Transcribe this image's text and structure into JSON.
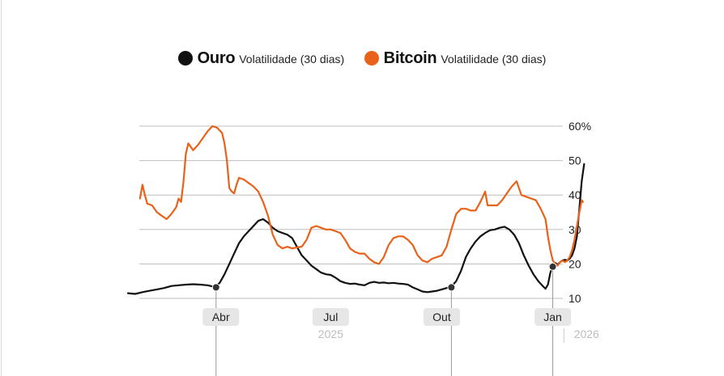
{
  "legend": {
    "gold_name": "Ouro",
    "gold_sub": "Volatilidade (30 dias)",
    "btc_name": "Bitcoin",
    "btc_sub": "Volatilidade (30 dias)"
  },
  "colors": {
    "gold": "#111111",
    "btc": "#e8621a",
    "grid": "#bdbdbd",
    "label_bg": "#e6e6e6"
  },
  "chart_data": {
    "type": "line",
    "title": "",
    "xlabel": "",
    "ylabel": "",
    "x_unit": "days since 2025-03-01",
    "xlim": [
      -46,
      313
    ],
    "ylim": [
      10,
      60
    ],
    "y_ticks": [
      10,
      20,
      30,
      40,
      50,
      60
    ],
    "y_tick_labels": [
      "10",
      "20",
      "30",
      "40",
      "50",
      "60%"
    ],
    "x_ticks": [
      {
        "x": 31,
        "label": "Abr"
      },
      {
        "x": 122,
        "label": "Jul"
      },
      {
        "x": 214,
        "label": "Out"
      },
      {
        "x": 306,
        "label": "Jan"
      }
    ],
    "year_labels": [
      {
        "x": 122,
        "label": "2025"
      },
      {
        "x": 334,
        "label": "2026"
      }
    ],
    "markers": [
      {
        "series": "Ouro",
        "x": 27,
        "y": 13.2
      },
      {
        "series": "Ouro",
        "x": 222,
        "y": 13.2
      },
      {
        "series": "Ouro",
        "x": 306,
        "y": 19.2
      }
    ],
    "series": [
      {
        "name": "Ouro",
        "points": [
          [
            -46,
            11.5
          ],
          [
            -40,
            11.3
          ],
          [
            -34,
            11.8
          ],
          [
            -28,
            12.2
          ],
          [
            -22,
            12.6
          ],
          [
            -16,
            13.0
          ],
          [
            -10,
            13.6
          ],
          [
            -4,
            13.8
          ],
          [
            2,
            14.0
          ],
          [
            8,
            14.1
          ],
          [
            14,
            14.0
          ],
          [
            20,
            13.8
          ],
          [
            26,
            13.3
          ],
          [
            30,
            14.5
          ],
          [
            34,
            17.0
          ],
          [
            38,
            20.0
          ],
          [
            42,
            23.0
          ],
          [
            46,
            26.0
          ],
          [
            50,
            28.0
          ],
          [
            54,
            29.5
          ],
          [
            58,
            31.0
          ],
          [
            62,
            32.5
          ],
          [
            66,
            33.0
          ],
          [
            70,
            32.0
          ],
          [
            74,
            30.5
          ],
          [
            78,
            29.5
          ],
          [
            82,
            29.0
          ],
          [
            86,
            28.5
          ],
          [
            90,
            27.5
          ],
          [
            94,
            25.0
          ],
          [
            98,
            22.5
          ],
          [
            102,
            21.0
          ],
          [
            106,
            19.5
          ],
          [
            110,
            18.5
          ],
          [
            114,
            17.5
          ],
          [
            118,
            17.0
          ],
          [
            122,
            16.8
          ],
          [
            126,
            16.0
          ],
          [
            130,
            15.0
          ],
          [
            134,
            14.5
          ],
          [
            138,
            14.2
          ],
          [
            142,
            14.3
          ],
          [
            146,
            14.0
          ],
          [
            150,
            13.8
          ],
          [
            154,
            14.5
          ],
          [
            158,
            14.8
          ],
          [
            162,
            14.5
          ],
          [
            166,
            14.6
          ],
          [
            170,
            14.4
          ],
          [
            174,
            14.5
          ],
          [
            178,
            14.3
          ],
          [
            182,
            14.2
          ],
          [
            186,
            14.0
          ],
          [
            190,
            13.2
          ],
          [
            194,
            12.6
          ],
          [
            198,
            12.0
          ],
          [
            202,
            11.8
          ],
          [
            206,
            12.0
          ],
          [
            210,
            12.2
          ],
          [
            214,
            12.6
          ],
          [
            218,
            13.0
          ],
          [
            222,
            13.4
          ],
          [
            226,
            15.0
          ],
          [
            230,
            18.0
          ],
          [
            234,
            22.0
          ],
          [
            238,
            24.5
          ],
          [
            242,
            26.5
          ],
          [
            246,
            28.0
          ],
          [
            250,
            29.0
          ],
          [
            254,
            29.8
          ],
          [
            258,
            30.0
          ],
          [
            262,
            30.5
          ],
          [
            266,
            30.8
          ],
          [
            270,
            30.0
          ],
          [
            274,
            28.5
          ],
          [
            278,
            26.0
          ],
          [
            282,
            22.5
          ],
          [
            286,
            19.5
          ],
          [
            290,
            17.0
          ],
          [
            294,
            15.0
          ],
          [
            298,
            13.5
          ],
          [
            300,
            12.8
          ],
          [
            302,
            14.0
          ],
          [
            304,
            17.5
          ],
          [
            306,
            19.5
          ],
          [
            308,
            20.3
          ],
          [
            310,
            19.8
          ],
          [
            312,
            20.5
          ],
          [
            314,
            21.0
          ],
          [
            316,
            21.2
          ],
          [
            318,
            21.0
          ],
          [
            320,
            21.5
          ],
          [
            322,
            22.5
          ],
          [
            324,
            24.5
          ],
          [
            326,
            28.0
          ],
          [
            328,
            36.0
          ],
          [
            330,
            44.0
          ],
          [
            332,
            49.0
          ]
        ]
      },
      {
        "name": "Bitcoin",
        "points": [
          [
            -36,
            39.0
          ],
          [
            -34,
            43.0
          ],
          [
            -32,
            40.0
          ],
          [
            -30,
            37.5
          ],
          [
            -26,
            37.0
          ],
          [
            -22,
            35.0
          ],
          [
            -18,
            34.0
          ],
          [
            -14,
            33.0
          ],
          [
            -10,
            34.5
          ],
          [
            -6,
            36.5
          ],
          [
            -4,
            39.0
          ],
          [
            -2,
            38.0
          ],
          [
            0,
            44.0
          ],
          [
            2,
            52.0
          ],
          [
            4,
            55.0
          ],
          [
            8,
            53.0
          ],
          [
            12,
            54.5
          ],
          [
            16,
            56.5
          ],
          [
            20,
            58.5
          ],
          [
            24,
            60.0
          ],
          [
            28,
            59.5
          ],
          [
            32,
            58.0
          ],
          [
            34,
            55.0
          ],
          [
            36,
            50.0
          ],
          [
            38,
            42.0
          ],
          [
            40,
            41.0
          ],
          [
            42,
            40.5
          ],
          [
            44,
            43.0
          ],
          [
            46,
            45.0
          ],
          [
            50,
            44.5
          ],
          [
            54,
            43.5
          ],
          [
            58,
            42.5
          ],
          [
            62,
            41.0
          ],
          [
            66,
            38.0
          ],
          [
            70,
            34.0
          ],
          [
            74,
            28.5
          ],
          [
            78,
            25.5
          ],
          [
            82,
            24.5
          ],
          [
            86,
            25.0
          ],
          [
            90,
            24.5
          ],
          [
            94,
            24.8
          ],
          [
            98,
            25.0
          ],
          [
            102,
            27.0
          ],
          [
            106,
            30.5
          ],
          [
            110,
            31.0
          ],
          [
            114,
            30.5
          ],
          [
            118,
            30.0
          ],
          [
            122,
            30.0
          ],
          [
            126,
            29.5
          ],
          [
            130,
            29.0
          ],
          [
            134,
            27.0
          ],
          [
            138,
            24.5
          ],
          [
            142,
            23.5
          ],
          [
            146,
            23.0
          ],
          [
            150,
            23.0
          ],
          [
            154,
            21.5
          ],
          [
            158,
            20.5
          ],
          [
            162,
            20.0
          ],
          [
            166,
            22.0
          ],
          [
            170,
            25.5
          ],
          [
            174,
            27.5
          ],
          [
            178,
            28.0
          ],
          [
            182,
            28.0
          ],
          [
            186,
            27.0
          ],
          [
            190,
            25.5
          ],
          [
            194,
            22.5
          ],
          [
            198,
            21.0
          ],
          [
            202,
            20.5
          ],
          [
            206,
            21.5
          ],
          [
            210,
            22.0
          ],
          [
            214,
            22.5
          ],
          [
            218,
            25.0
          ],
          [
            222,
            30.0
          ],
          [
            226,
            34.5
          ],
          [
            230,
            36.0
          ],
          [
            234,
            36.0
          ],
          [
            238,
            35.5
          ],
          [
            242,
            35.5
          ],
          [
            246,
            38.0
          ],
          [
            250,
            41.0
          ],
          [
            252,
            37.0
          ],
          [
            256,
            37.0
          ],
          [
            260,
            37.0
          ],
          [
            264,
            38.5
          ],
          [
            268,
            40.5
          ],
          [
            272,
            42.5
          ],
          [
            276,
            44.0
          ],
          [
            280,
            40.0
          ],
          [
            284,
            39.5
          ],
          [
            288,
            39.0
          ],
          [
            292,
            38.5
          ],
          [
            296,
            36.0
          ],
          [
            300,
            33.0
          ],
          [
            302,
            28.0
          ],
          [
            304,
            24.0
          ],
          [
            306,
            21.0
          ],
          [
            308,
            20.0
          ],
          [
            310,
            19.5
          ],
          [
            312,
            20.5
          ],
          [
            314,
            21.0
          ],
          [
            316,
            20.5
          ],
          [
            318,
            21.0
          ],
          [
            320,
            22.0
          ],
          [
            322,
            24.0
          ],
          [
            324,
            27.0
          ],
          [
            326,
            31.0
          ],
          [
            328,
            35.0
          ],
          [
            330,
            38.5
          ],
          [
            331,
            38.0
          ]
        ]
      }
    ]
  }
}
